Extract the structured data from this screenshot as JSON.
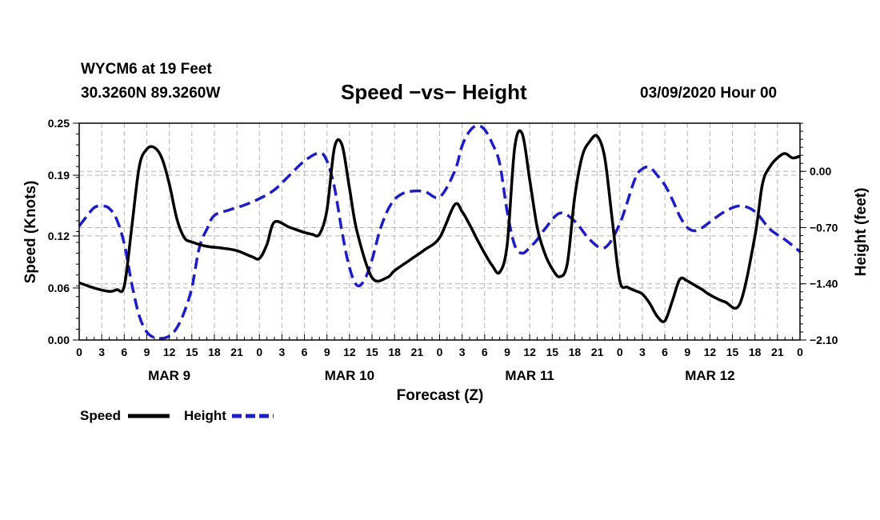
{
  "header": {
    "station": "WYCM6 at 19 Feet",
    "coordinates": "30.3260N 89.3260W",
    "title": "Speed −vs− Height",
    "timestamp": "03/09/2020 Hour 00"
  },
  "chart_data": {
    "type": "line",
    "title": "Speed −vs− Height",
    "xlabel": "Forecast (Z)",
    "ylabel_left": "Speed (Knots)",
    "ylabel_right": "Height (feet)",
    "x_unit": "forecast hour",
    "xlim": [
      0,
      96
    ],
    "x_tick_step_hours": 3,
    "x_tick_labels": [
      "0",
      "3",
      "6",
      "9",
      "12",
      "15",
      "18",
      "21",
      "0",
      "3",
      "6",
      "9",
      "12",
      "15",
      "18",
      "21",
      "0",
      "3",
      "6",
      "9",
      "12",
      "15",
      "18",
      "21",
      "0",
      "3",
      "6",
      "9",
      "12",
      "15",
      "18",
      "21",
      "0"
    ],
    "day_labels": [
      {
        "label": "MAR 9",
        "hour": 12
      },
      {
        "label": "MAR 10",
        "hour": 36
      },
      {
        "label": "MAR 11",
        "hour": 60
      },
      {
        "label": "MAR 12",
        "hour": 84
      }
    ],
    "ylim_left": [
      0,
      0.25
    ],
    "y_left_ticks": [
      0.0,
      0.06,
      0.12,
      0.19,
      0.25
    ],
    "y_left_tick_labels": [
      "0.00",
      "0.06",
      "0.12",
      "0.19",
      "0.25"
    ],
    "ylim_right": [
      -2.1,
      0.6
    ],
    "y_right_ticks": [
      -2.1,
      -1.4,
      -0.7,
      0.0
    ],
    "y_right_tick_labels": [
      "−2.10",
      "−1.40",
      "−0.70",
      "0.00"
    ],
    "grid": true,
    "legend": [
      "Speed",
      "Height"
    ],
    "series": [
      {
        "name": "Speed",
        "axis": "left",
        "color": "#000000",
        "style": "solid",
        "x": [
          0,
          2,
          4,
          5,
          6,
          7,
          8,
          9,
          10,
          11,
          12,
          13,
          14,
          15,
          17,
          19,
          21,
          23,
          24,
          25,
          26,
          28,
          30,
          31,
          32,
          33,
          34,
          35,
          36,
          37,
          39,
          41,
          42,
          44,
          46,
          48,
          50,
          51,
          52,
          53,
          54,
          55,
          56,
          57,
          58,
          59,
          60,
          61,
          62,
          63,
          64,
          65,
          66,
          67,
          68,
          69,
          70,
          71,
          72,
          73,
          74,
          75,
          76,
          77,
          78,
          79,
          80,
          81,
          82,
          83,
          84,
          86,
          88,
          90,
          91,
          92,
          93,
          94,
          95,
          96
        ],
        "values": [
          0.066,
          0.06,
          0.056,
          0.058,
          0.062,
          0.13,
          0.2,
          0.22,
          0.222,
          0.21,
          0.18,
          0.14,
          0.118,
          0.113,
          0.108,
          0.106,
          0.103,
          0.096,
          0.094,
          0.11,
          0.136,
          0.13,
          0.124,
          0.122,
          0.122,
          0.15,
          0.222,
          0.225,
          0.175,
          0.125,
          0.072,
          0.072,
          0.08,
          0.092,
          0.104,
          0.118,
          0.156,
          0.148,
          0.133,
          0.116,
          0.1,
          0.086,
          0.078,
          0.11,
          0.222,
          0.238,
          0.185,
          0.13,
          0.1,
          0.082,
          0.073,
          0.088,
          0.165,
          0.212,
          0.229,
          0.235,
          0.21,
          0.138,
          0.068,
          0.061,
          0.057,
          0.053,
          0.042,
          0.027,
          0.022,
          0.045,
          0.07,
          0.068,
          0.063,
          0.058,
          0.052,
          0.044,
          0.042,
          0.12,
          0.18,
          0.2,
          0.21,
          0.215,
          0.21,
          0.212
        ]
      },
      {
        "name": "Height",
        "axis": "right",
        "color": "#1c1cc8",
        "style": "dashed",
        "x": [
          0,
          1,
          2,
          3,
          4,
          5,
          6,
          7,
          8,
          9,
          10,
          11,
          12,
          13,
          14,
          15,
          16,
          17,
          18,
          20,
          22,
          24,
          26,
          28,
          30,
          32,
          33,
          34,
          35,
          36,
          37,
          38,
          39,
          40,
          41,
          42,
          43,
          44,
          46,
          48,
          50,
          51,
          52,
          53,
          54,
          55,
          56,
          57,
          58,
          59,
          60,
          61,
          62,
          64,
          66,
          68,
          70,
          72,
          74,
          75,
          76,
          77,
          78,
          79,
          80,
          81,
          82,
          83,
          84,
          86,
          88,
          90,
          92,
          94,
          96
        ],
        "values": [
          -0.68,
          -0.56,
          -0.45,
          -0.43,
          -0.46,
          -0.6,
          -0.9,
          -1.4,
          -1.8,
          -2.0,
          -2.07,
          -2.08,
          -2.05,
          -1.95,
          -1.75,
          -1.45,
          -0.95,
          -0.72,
          -0.55,
          -0.48,
          -0.42,
          -0.34,
          -0.23,
          -0.05,
          0.13,
          0.23,
          0.13,
          -0.2,
          -0.75,
          -1.2,
          -1.42,
          -1.35,
          -1.1,
          -0.75,
          -0.5,
          -0.35,
          -0.28,
          -0.25,
          -0.25,
          -0.32,
          0.0,
          0.32,
          0.5,
          0.57,
          0.52,
          0.35,
          0.1,
          -0.5,
          -0.92,
          -1.02,
          -0.95,
          -0.85,
          -0.72,
          -0.52,
          -0.62,
          -0.85,
          -0.95,
          -0.65,
          -0.1,
          0.03,
          0.05,
          -0.05,
          -0.17,
          -0.35,
          -0.56,
          -0.7,
          -0.74,
          -0.7,
          -0.63,
          -0.5,
          -0.43,
          -0.5,
          -0.72,
          -0.85,
          -1.0
        ]
      }
    ]
  }
}
